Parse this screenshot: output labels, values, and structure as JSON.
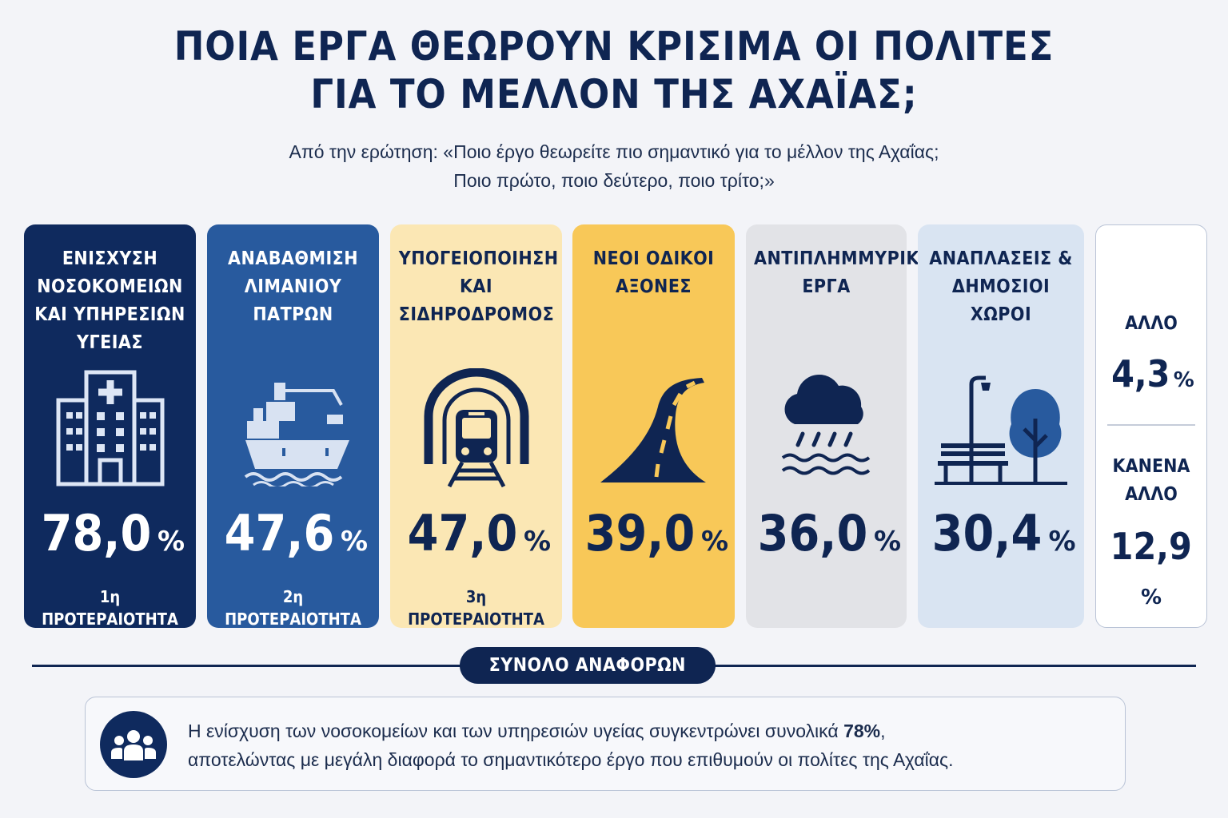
{
  "title": {
    "line1": "ΠΟΙΑ ΕΡΓΑ ΘΕΩΡΟΥΝ ΚΡΙΣΙΜΑ ΟΙ ΠΟΛΙΤΕΣ",
    "line2": "ΓΙΑ ΤΟ ΜΕΛΛΟΝ ΤΗΣ ΑΧΑΪΑΣ;"
  },
  "subtitle": {
    "line1": "Από την ερώτηση: «Ποιο έργο θεωρείτε πιο σημαντικό για το μέλλον της Αχαΐας;",
    "line2": "Ποιο πρώτο, ποιο δεύτερο, ποιο τρίτο;»"
  },
  "percent_sign": "%",
  "cards": [
    {
      "label": [
        "ΕΝΙΣΧΥΣΗ",
        "ΝΟΣΟΚΟΜΕΙΩΝ",
        "ΚΑΙ ΥΠΗΡΕΣΙΩΝ",
        "ΥΓΕΙΑΣ"
      ],
      "value": "78,0",
      "priority": "1η ΠΡΟΤΕΡΑΙΟΤΗΤΑ",
      "icon": "hospital-icon",
      "bg": "#0f2a5e"
    },
    {
      "label": [
        "ΑΝΑΒΑΘΜΙΣΗ",
        "ΛΙΜΑΝΙΟΥ",
        "ΠΑΤΡΩΝ"
      ],
      "value": "47,6",
      "priority": "2η ΠΡΟΤΕΡΑΙΟΤΗΤΑ",
      "icon": "ship-icon",
      "bg": "#285a9e"
    },
    {
      "label": [
        "ΥΠΟΓΕΙΟΠΟΙΗΣΗ",
        "ΚΑΙ",
        "ΣΙΔΗΡΟΔΡΟΜΟΣ"
      ],
      "value": "47,0",
      "priority": "3η ΠΡΟΤΕΡΑΙΟΤΗΤΑ",
      "icon": "train-tunnel-icon",
      "bg": "#fbe7b4"
    },
    {
      "label": [
        "ΝΕΟΙ ΟΔΙΚΟΙ",
        "ΑΞΟΝΕΣ"
      ],
      "value": "39,0",
      "priority": "",
      "icon": "road-icon",
      "bg": "#f8c858"
    },
    {
      "label": [
        "ΑΝΤΙΠΛΗΜΜΥΡΙΚΑ",
        "ΕΡΓΑ"
      ],
      "value": "36,0",
      "priority": "",
      "icon": "rain-flood-icon",
      "bg": "#e2e3e7"
    },
    {
      "label": [
        "ΑΝΑΠΛΑΣΕΙΣ &",
        "ΔΗΜΟΣΙΟΙ",
        "ΧΩΡΟΙ"
      ],
      "value": "30,4",
      "priority": "",
      "icon": "park-bench-tree-icon",
      "bg": "#d9e4f2"
    }
  ],
  "other": {
    "label": [
      "ΑΛΛΟ"
    ],
    "value": "4,3",
    "none_label": [
      "ΚΑΝΕΝΑ",
      "ΑΛΛΟ"
    ],
    "none_value": "12,9"
  },
  "summary": {
    "heading": "ΣΥΝΟΛΟ ΑΝΑΦΟΡΩΝ",
    "text_before": "Η ενίσχυση των νοσοκομείων και των υπηρεσιών υγείας συγκεντρώνει συνολικά ",
    "text_bold": "78%",
    "text_after": ",",
    "line2": "αποτελώντας με μεγάλη διαφορά το σημαντικότερο έργο που επιθυμούν οι πολίτες της Αχαΐας.",
    "icon": "people-group-icon"
  },
  "colors": {
    "navy": "#0f2552",
    "blue": "#285a9e",
    "cream": "#fbe7b4",
    "gold": "#f8c858",
    "grey": "#e2e3e7",
    "lightblue": "#d9e4f2"
  },
  "chart_data": {
    "type": "bar",
    "title": "ΠΟΙΑ ΕΡΓΑ ΘΕΩΡΟΥΝ ΚΡΙΣΙΜΑ ΟΙ ΠΟΛΙΤΕΣ ΓΙΑ ΤΟ ΜΕΛΛΟΝ ΤΗΣ ΑΧΑΪΑΣ;",
    "categories": [
      "ΕΝΙΣΧΥΣΗ ΝΟΣΟΚΟΜΕΙΩΝ ΚΑΙ ΥΠΗΡΕΣΙΩΝ ΥΓΕΙΑΣ",
      "ΑΝΑΒΑΘΜΙΣΗ ΛΙΜΑΝΙΟΥ ΠΑΤΡΩΝ",
      "ΥΠΟΓΕΙΟΠΟΙΗΣΗ ΚΑΙ ΣΙΔΗΡΟΔΡΟΜΟΣ",
      "ΝΕΟΙ ΟΔΙΚΟΙ ΑΞΟΝΕΣ",
      "ΑΝΤΙΠΛΗΜΜΥΡΙΚΑ ΕΡΓΑ",
      "ΑΝΑΠΛΑΣΕΙΣ & ΔΗΜΟΣΙΟΙ ΧΩΡΟΙ",
      "ΑΛΛΟ",
      "ΚΑΝΕΝΑ ΑΛΛΟ"
    ],
    "values": [
      78.0,
      47.6,
      47.0,
      39.0,
      36.0,
      30.4,
      4.3,
      12.9
    ]
  }
}
